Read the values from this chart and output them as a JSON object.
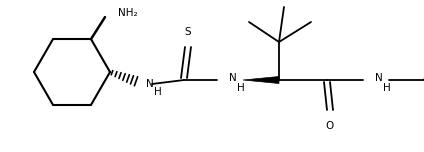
{
  "figsize": [
    4.24,
    1.52
  ],
  "dpi": 100,
  "bg_color": "#ffffff",
  "line_color": "#000000",
  "line_width": 1.3,
  "text_color": "#000000",
  "font_size": 7.5,
  "xlim": [
    0,
    424
  ],
  "ylim": [
    0,
    152
  ]
}
